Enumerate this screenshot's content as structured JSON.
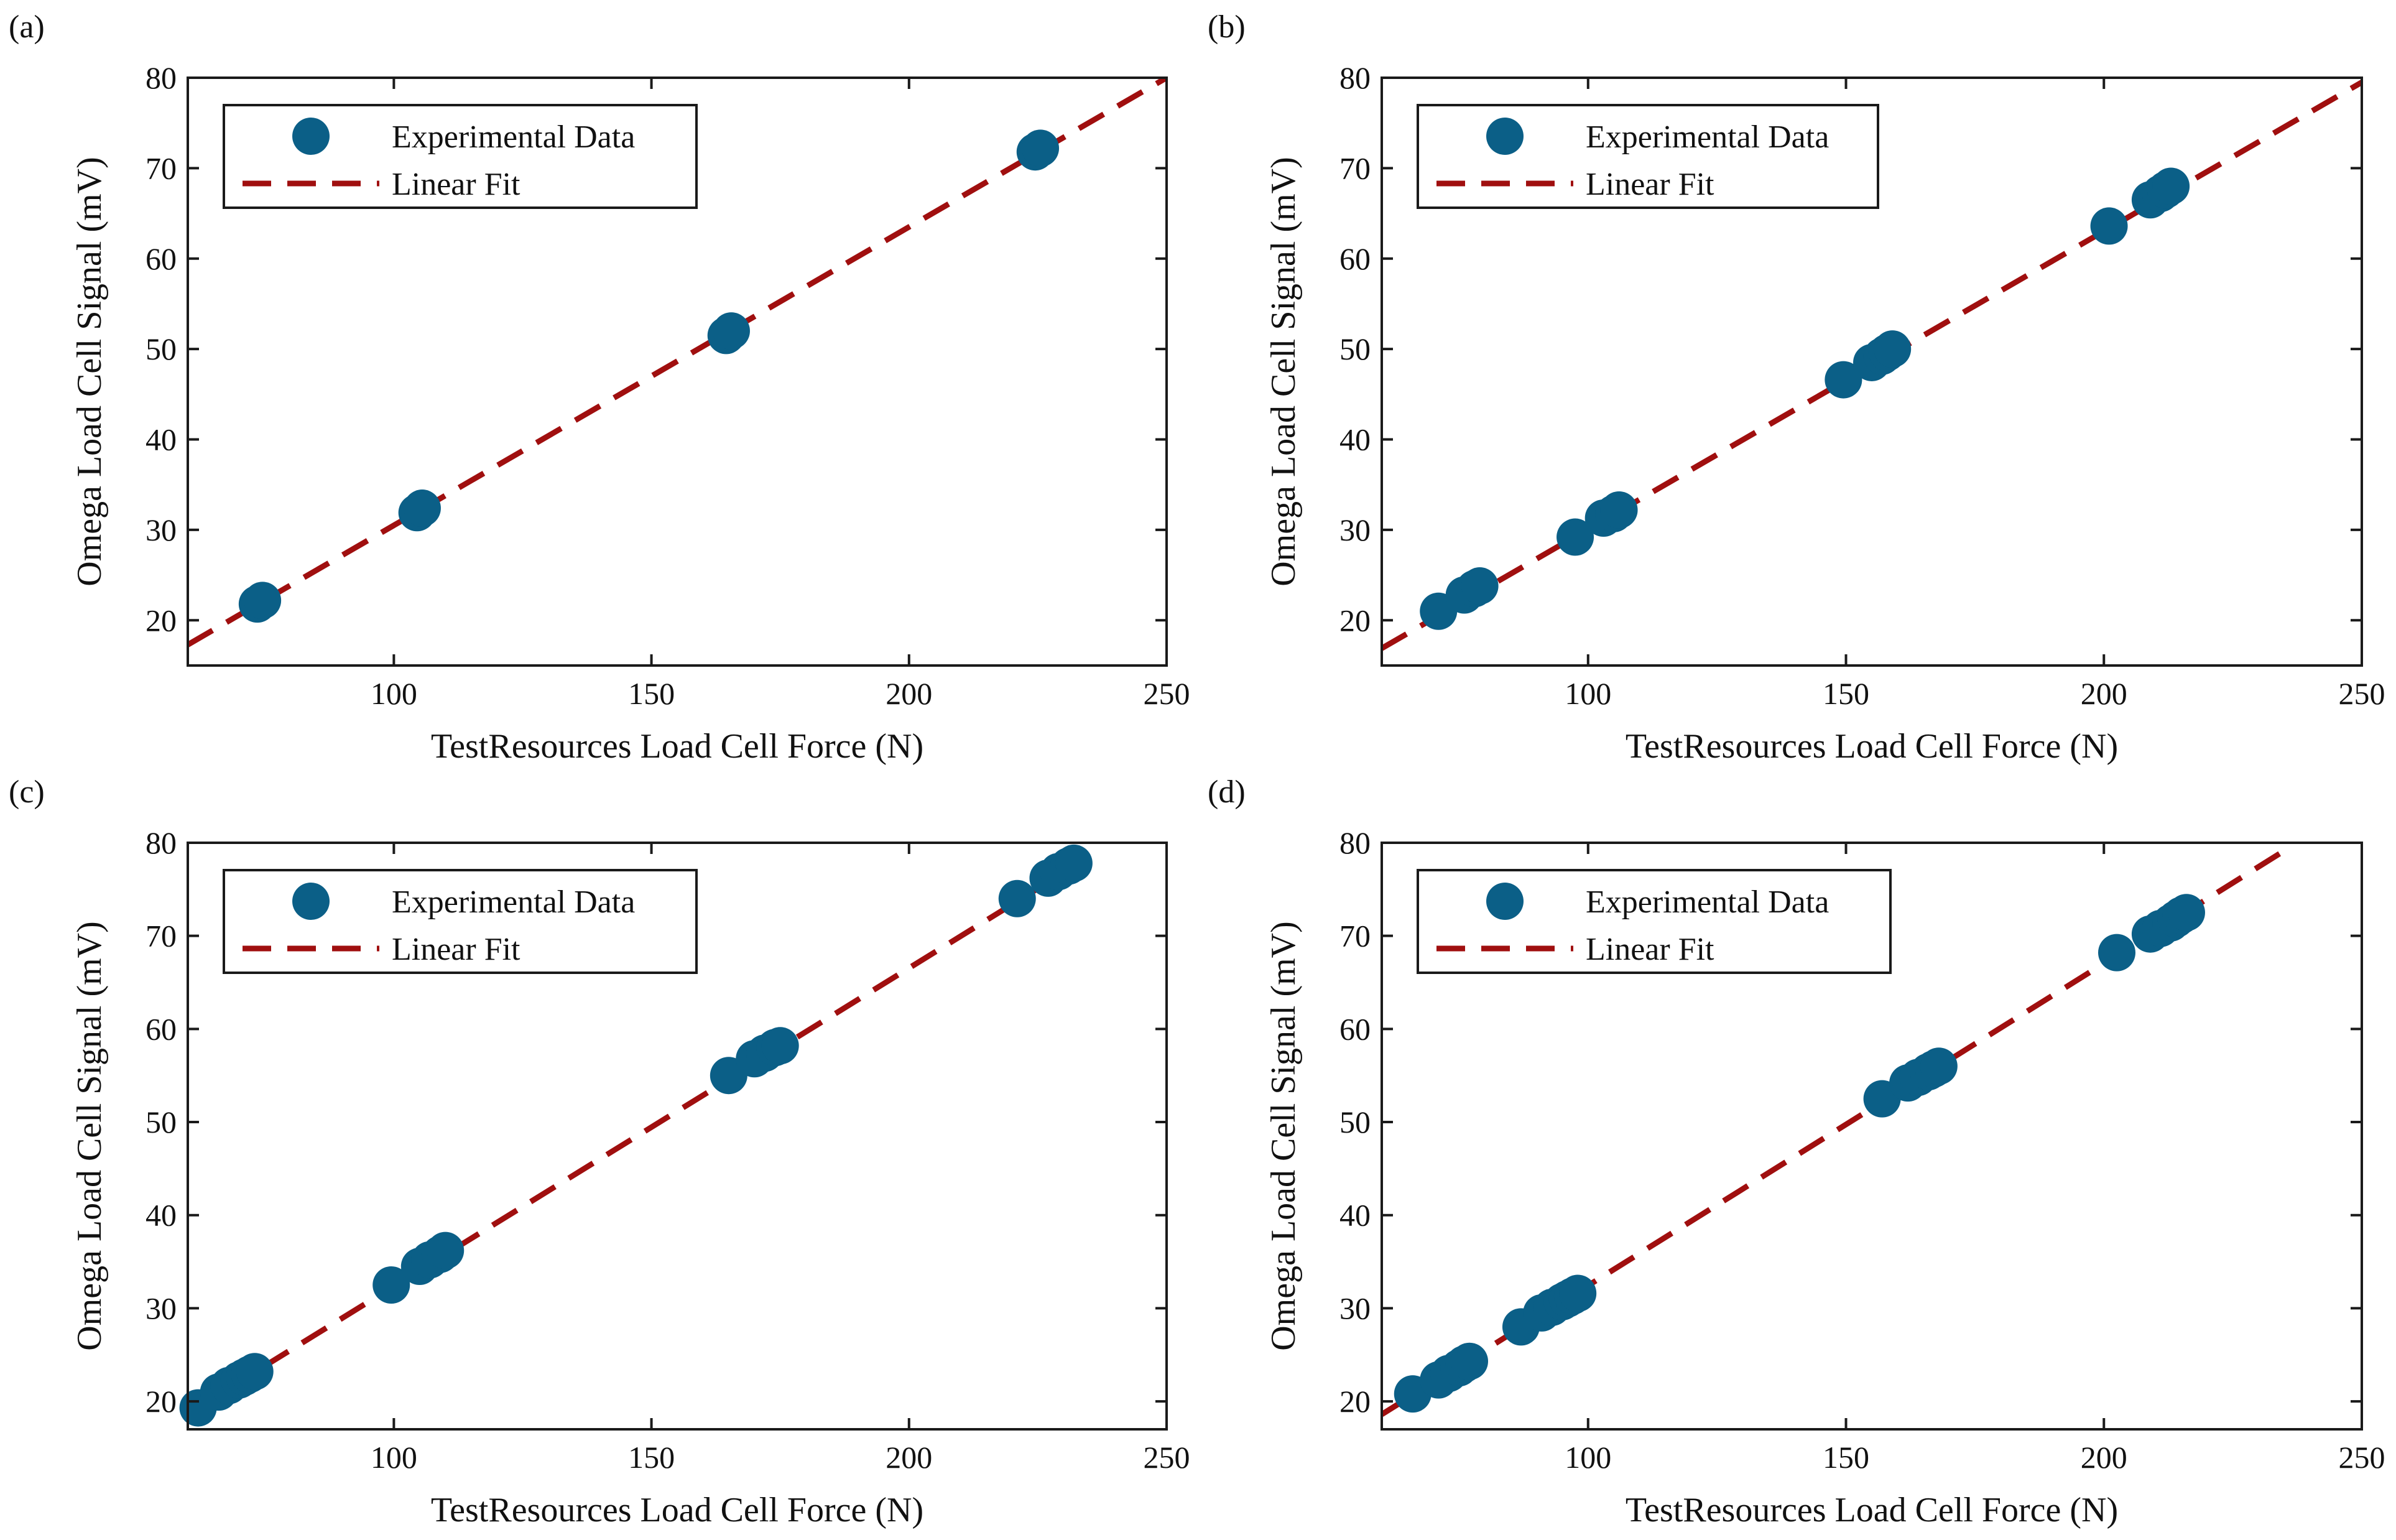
{
  "figure": {
    "xlabel": "TestResources Load Cell Force (N)",
    "ylabel": "Omega Load Cell Signal (mV)",
    "legend": {
      "marker_label": "Experimental Data",
      "line_label": "Linear Fit"
    }
  },
  "colors": {
    "marker": "#0b5f87",
    "fit_line": "#a00f0f",
    "axes": "#1a1a1a"
  },
  "chart_data": [
    {
      "type": "scatter",
      "panel": "(a)",
      "title": "",
      "xlabel": "TestResources Load Cell Force (N)",
      "ylabel": "Omega Load Cell Signal (mV)",
      "xlim": [
        60,
        250
      ],
      "ylim": [
        15,
        80
      ],
      "xticks": [
        100,
        150,
        200,
        250
      ],
      "yticks": [
        20,
        30,
        40,
        50,
        60,
        70,
        80
      ],
      "legend": [
        "Experimental Data",
        "Linear Fit"
      ],
      "legend_position": "top-left",
      "series": [
        {
          "name": "Experimental Data",
          "x": [
            73.5,
            74.5,
            104.5,
            105.5,
            164.5,
            165.5,
            224.5,
            225.5
          ],
          "y": [
            21.8,
            22.2,
            31.9,
            32.4,
            51.5,
            52.0,
            71.8,
            72.2
          ]
        },
        {
          "name": "Linear Fit",
          "x": [
            60,
            250
          ],
          "y": [
            17.3,
            80.0
          ]
        }
      ]
    },
    {
      "type": "scatter",
      "panel": "(b)",
      "title": "",
      "xlabel": "TestResources Load Cell Force (N)",
      "ylabel": "Omega Load Cell Signal (mV)",
      "xlim": [
        60,
        250
      ],
      "ylim": [
        15,
        80
      ],
      "xticks": [
        100,
        150,
        200,
        250
      ],
      "yticks": [
        20,
        30,
        40,
        50,
        60,
        70,
        80
      ],
      "legend": [
        "Experimental Data",
        "Linear Fit"
      ],
      "legend_position": "top-left",
      "series": [
        {
          "name": "Experimental Data",
          "x": [
            71,
            76,
            78,
            79,
            97.5,
            103,
            105,
            106,
            149.5,
            155,
            157,
            158,
            159,
            201,
            209,
            211,
            212,
            213
          ],
          "y": [
            21.0,
            22.8,
            23.5,
            23.8,
            29.2,
            31.3,
            31.8,
            32.2,
            46.6,
            48.5,
            49.2,
            49.6,
            50.0,
            63.6,
            66.5,
            67.2,
            67.6,
            68.0
          ]
        },
        {
          "name": "Linear Fit",
          "x": [
            60,
            250
          ],
          "y": [
            16.9,
            79.5
          ]
        }
      ]
    },
    {
      "type": "scatter",
      "panel": "(c)",
      "title": "",
      "xlabel": "TestResources Load Cell Force (N)",
      "ylabel": "Omega Load Cell Signal (mV)",
      "xlim": [
        60,
        250
      ],
      "ylim": [
        17,
        80
      ],
      "xticks": [
        100,
        150,
        200,
        250
      ],
      "yticks": [
        20,
        30,
        40,
        50,
        60,
        70,
        80
      ],
      "legend": [
        "Experimental Data",
        "Linear Fit"
      ],
      "legend_position": "top-left",
      "series": [
        {
          "name": "Experimental Data",
          "x": [
            62,
            66,
            68,
            70,
            71,
            72,
            73,
            99.5,
            105,
            107,
            109,
            110,
            165,
            170,
            172,
            174,
            175,
            221,
            227,
            229,
            231,
            232
          ],
          "y": [
            19.3,
            21.0,
            21.7,
            22.3,
            22.6,
            22.9,
            23.2,
            32.5,
            34.5,
            35.2,
            35.8,
            36.2,
            55.0,
            56.8,
            57.4,
            58.0,
            58.2,
            74.0,
            76.2,
            76.9,
            77.5,
            77.8
          ]
        },
        {
          "name": "Linear Fit",
          "x": [
            60,
            235
          ],
          "y": [
            18.7,
            78.5
          ]
        }
      ]
    },
    {
      "type": "scatter",
      "panel": "(d)",
      "title": "",
      "xlabel": "TestResources Load Cell Force (N)",
      "ylabel": "Omega Load Cell Signal (mV)",
      "xlim": [
        60,
        250
      ],
      "ylim": [
        17,
        80
      ],
      "xticks": [
        100,
        150,
        200,
        250
      ],
      "yticks": [
        20,
        30,
        40,
        50,
        60,
        70,
        80
      ],
      "legend": [
        "Experimental Data",
        "Linear Fit"
      ],
      "legend_position": "top-left",
      "series": [
        {
          "name": "Experimental Data",
          "x": [
            66,
            71,
            73,
            75,
            76,
            77,
            87,
            91,
            93,
            95,
            96,
            97,
            98,
            157,
            162,
            164,
            166,
            167,
            168,
            202.5,
            209,
            211,
            213,
            214,
            215,
            216
          ],
          "y": [
            20.8,
            22.3,
            23.0,
            23.6,
            24.0,
            24.3,
            28.0,
            29.5,
            30.1,
            30.7,
            31.0,
            31.3,
            31.6,
            52.5,
            54.2,
            54.8,
            55.4,
            55.7,
            56.0,
            68.2,
            70.2,
            70.8,
            71.4,
            71.8,
            72.2,
            72.5
          ]
        },
        {
          "name": "Linear Fit",
          "x": [
            60,
            236
          ],
          "y": [
            18.6,
            79.5
          ]
        }
      ]
    }
  ]
}
